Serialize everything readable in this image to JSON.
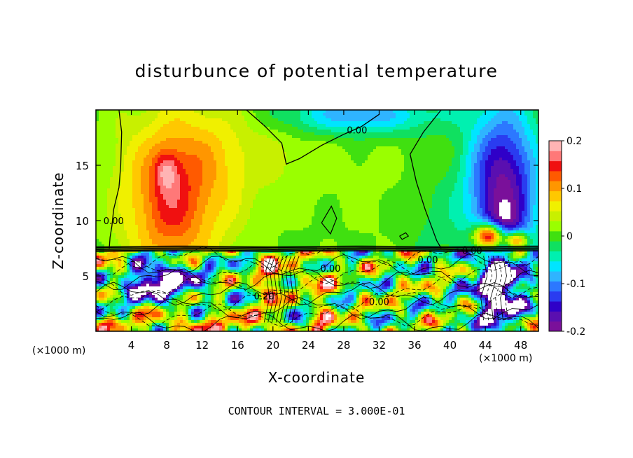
{
  "chart_data": {
    "type": "heatmap",
    "title": "disturbunce of potential temperature",
    "xlabel": "X-coordinate",
    "ylabel": "Z-coordinate",
    "x_unit_left": "(×1000 m)",
    "x_unit_right": "(×1000 m)",
    "footer": "CONTOUR INTERVAL = 3.000E-01",
    "xlim": [
      0,
      50
    ],
    "ylim": [
      0,
      20
    ],
    "x_ticks": [
      4,
      8,
      12,
      16,
      20,
      24,
      28,
      32,
      36,
      40,
      44,
      48
    ],
    "y_ticks": [
      5,
      10,
      15
    ],
    "colorbar": {
      "min": -0.2,
      "max": 0.2,
      "tick_labels": [
        "0.2",
        "0.1",
        "0",
        "-0.1",
        "-0.2"
      ],
      "tick_values": [
        0.2,
        0.1,
        0,
        -0.1,
        -0.2
      ],
      "colors": [
        "#7a109a",
        "#5a0fb0",
        "#2f00c8",
        "#2a3cf0",
        "#2c78ff",
        "#2fb4ff",
        "#00e5ff",
        "#00f0b0",
        "#10e060",
        "#40e010",
        "#9aff00",
        "#c8f000",
        "#f0f000",
        "#ffc800",
        "#ff9600",
        "#ff5a00",
        "#f01010",
        "#ff7878",
        "#ffb4b4"
      ]
    },
    "contour_labels": [
      {
        "text": "0.00",
        "x": 29.5,
        "z": 18.2
      },
      {
        "text": "0.00",
        "x": 2.0,
        "z": 10.0
      },
      {
        "text": "0.00",
        "x": 42.5,
        "z": 7.3
      },
      {
        "text": "0.00",
        "x": 37.5,
        "z": 6.5
      },
      {
        "text": "0.00",
        "x": 26.5,
        "z": 5.7
      },
      {
        "text": "0.20",
        "x": 19.0,
        "z": 3.2
      },
      {
        "text": "0.00",
        "x": 32.0,
        "z": 2.7
      }
    ]
  }
}
